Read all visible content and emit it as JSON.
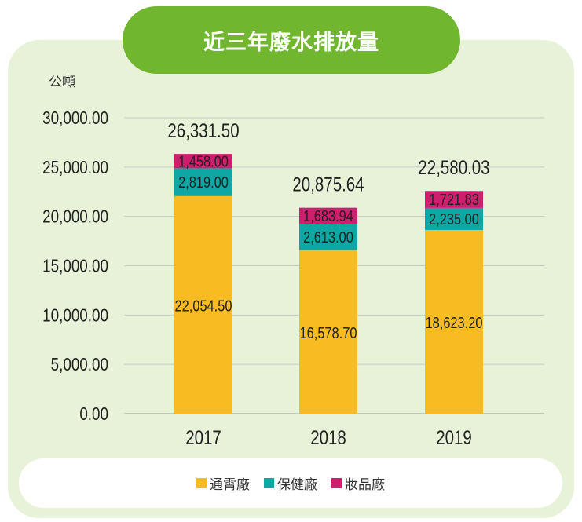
{
  "title": "近三年廢水排放量",
  "chart_data": {
    "type": "bar",
    "stacked": true,
    "unit_label": "公噸",
    "categories": [
      "2017",
      "2018",
      "2019"
    ],
    "series": [
      {
        "name": "通霄廠",
        "color": "#f8bb22",
        "values": [
          22054.5,
          16578.7,
          18623.2
        ],
        "labels": [
          "22,054.50",
          "16,578.70",
          "18,623.20"
        ]
      },
      {
        "name": "保健廠",
        "color": "#0da8a4",
        "values": [
          2819.0,
          2613.0,
          2235.0
        ],
        "labels": [
          "2,819.00",
          "2,613.00",
          "2,235.00"
        ]
      },
      {
        "name": "妝品廠",
        "color": "#cc1f6e",
        "values": [
          1458.0,
          1683.94,
          1721.83
        ],
        "labels": [
          "1,458.00",
          "1,683.94",
          "1,721.83"
        ]
      }
    ],
    "totals": [
      "26,331.50",
      "20,875.64",
      "22,580.03"
    ],
    "yticks": [
      "0.00",
      "5,000.00",
      "10,000.00",
      "15,000.00",
      "20,000.00",
      "25,000.00",
      "30,000.00"
    ],
    "ylim": [
      0,
      30000
    ],
    "grid": true,
    "legend_position": "bottom"
  }
}
